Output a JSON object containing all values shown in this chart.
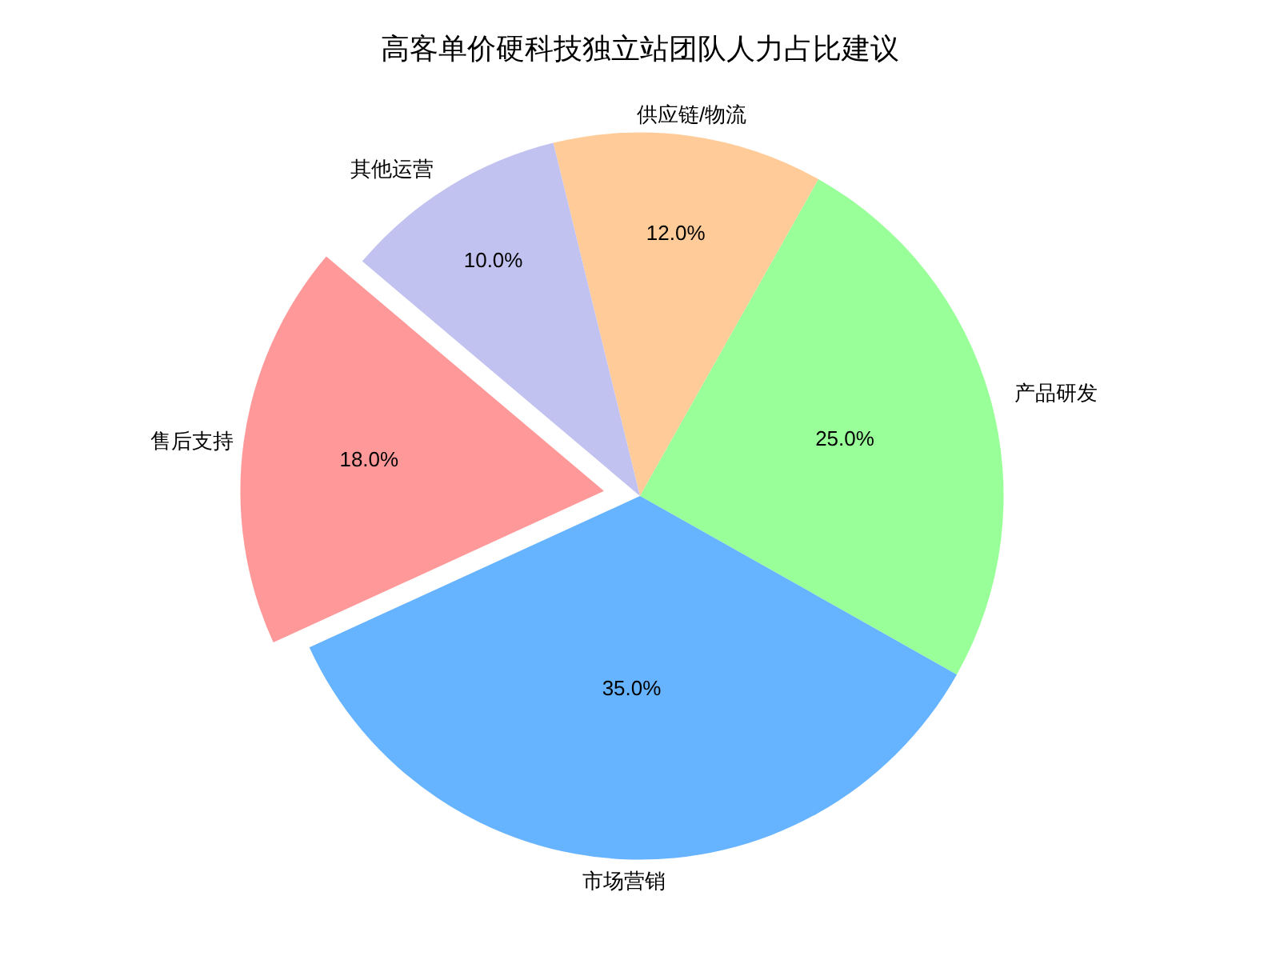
{
  "chart_data": {
    "type": "pie",
    "title": "高客单价硬科技独立站团队人力占比建议",
    "categories": [
      "供应链/物流",
      "产品研发",
      "市场营销",
      "售后支持",
      "其他运营"
    ],
    "values": [
      12,
      25,
      35,
      18,
      10
    ],
    "value_labels": [
      "12.0%",
      "25.0%",
      "35.0%",
      "18.0%",
      "10.0%"
    ],
    "colors": [
      "#ffcc99",
      "#99ff99",
      "#66b3ff",
      "#ff9999",
      "#c2c2f0"
    ],
    "legend": false
  }
}
